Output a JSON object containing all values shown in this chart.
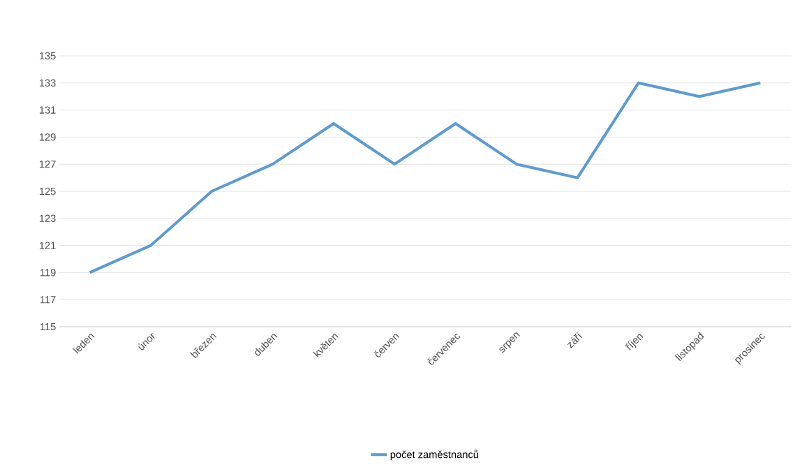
{
  "chart_data": {
    "type": "line",
    "categories": [
      "leden",
      "únor",
      "březen",
      "duben",
      "květen",
      "červen",
      "červenec",
      "srpen",
      "září",
      "říjen",
      "listopad",
      "prosinec"
    ],
    "series": [
      {
        "name": "počet zaměstnanců",
        "color": "#5b9bd5",
        "values": [
          119,
          121,
          125,
          127,
          130,
          127,
          130,
          127,
          126,
          133,
          132,
          133
        ]
      }
    ],
    "ylim": [
      115,
      135
    ],
    "yticks": [
      115,
      117,
      119,
      121,
      123,
      125,
      127,
      129,
      131,
      133,
      135
    ],
    "grid": "y",
    "legend": "bottom"
  }
}
